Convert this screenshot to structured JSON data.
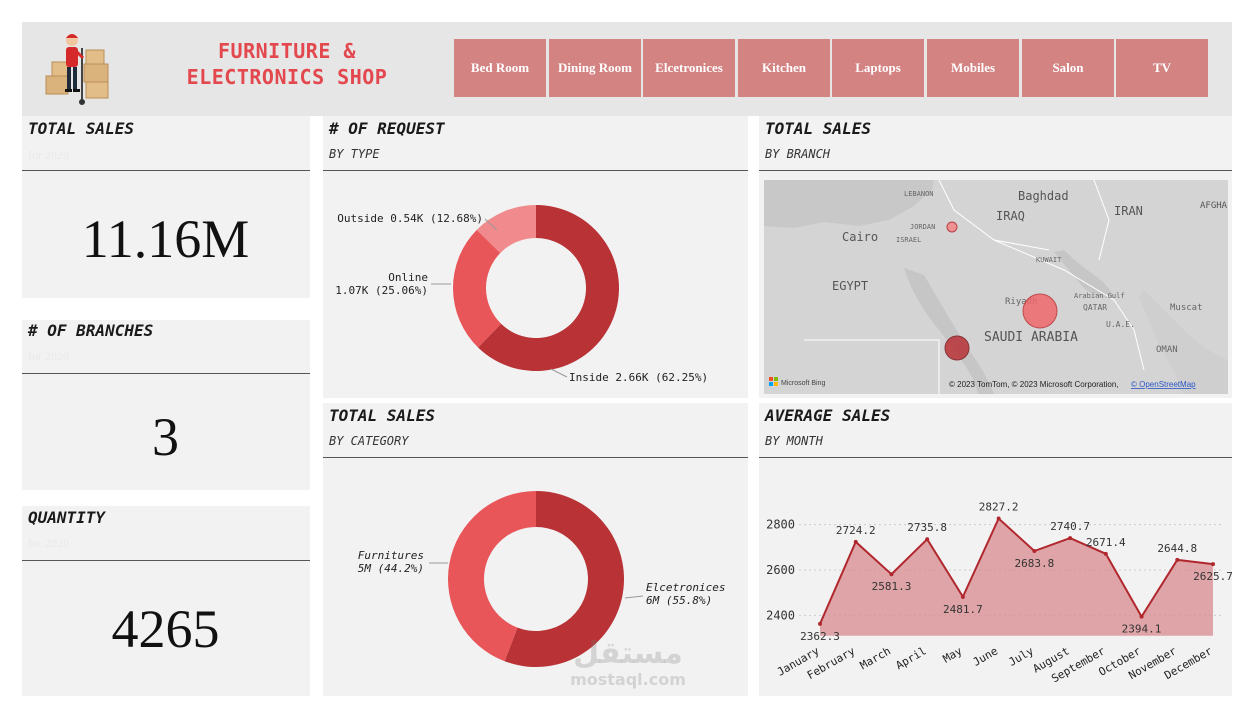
{
  "header": {
    "title_line1": "FURNITURE &",
    "title_line2": "ELECTRONICS SHOP",
    "logo_icon": "delivery-person-boxes-icon",
    "nav": [
      "Bed Room",
      "Dining Room",
      "Elcetronices",
      "Kitchen",
      "Laptops",
      "Mobiles",
      "Salon",
      "TV"
    ]
  },
  "kpis": {
    "sales": {
      "title": "TOTAL SALES",
      "sub": "for 2020",
      "value": "11.16M"
    },
    "branches": {
      "title": "# OF BRANCHES",
      "sub": "for 2020",
      "value": "3"
    },
    "quantity": {
      "title": "QUANTITY",
      "sub": "for 2020",
      "value": "4265"
    }
  },
  "request_panel": {
    "title": "# OF REQUEST",
    "subtitle": "BY TYPE"
  },
  "category_panel": {
    "title": "TOTAL SALES",
    "subtitle": "BY CATEGORY"
  },
  "branch_panel": {
    "title": "TOTAL SALES",
    "subtitle": "BY BRANCH",
    "map_labels": [
      "LEBANON",
      "Baghdad",
      "IRAQ",
      "IRAN",
      "AFGHA",
      "JORDAN",
      "ISRAEL",
      "Cairo",
      "KUWAIT",
      "EGYPT",
      "Riyadh",
      "Arabian Gulf",
      "QATAR",
      "U.A.E.",
      "Muscat",
      "OMAN",
      "SAUDI ARABIA"
    ],
    "attribution": "© 2023 TomTom, © 2023 Microsoft Corporation,",
    "osm_link": "© OpenStreetMap",
    "bing_label": "Microsoft Bing"
  },
  "month_panel": {
    "title": "AVERAGE SALES",
    "subtitle": "BY MONTH"
  },
  "watermark": {
    "arabic": "مستقل",
    "latin": "mostaql.com"
  },
  "colors": {
    "accent": "#e2484e",
    "nav_bg": "#d48383",
    "dark_red": "#b83236",
    "mid_red": "#e8565a",
    "light_red": "#f08a8c",
    "area_fill": "#d88a8e",
    "line": "#b0282e"
  },
  "chart_data": [
    {
      "type": "pie",
      "style": "donut",
      "categories": [
        "Inside",
        "Online",
        "Outside"
      ],
      "values": [
        2.66,
        1.07,
        0.54
      ],
      "unit": "K",
      "labels": [
        "Inside 2.66K (62.25%)",
        "Online 1.07K (25.06%)",
        "Outside 0.54K (12.68%)"
      ]
    },
    {
      "type": "pie",
      "style": "donut",
      "categories": [
        "Elcetronices",
        "Furnitures"
      ],
      "values": [
        55.8,
        44.2
      ],
      "labels_line1": [
        "Elcetronices",
        "Furnitures"
      ],
      "labels_line2": [
        "6M (55.8%)",
        "5M (44.2%)"
      ]
    },
    {
      "type": "area",
      "categories": [
        "January",
        "February",
        "March",
        "April",
        "May",
        "June",
        "July",
        "August",
        "September",
        "October",
        "November",
        "December"
      ],
      "values": [
        2362.3,
        2724.2,
        2581.3,
        2735.8,
        2481.7,
        2827.2,
        2683.8,
        2740.7,
        2671.4,
        2394.1,
        2644.8,
        2625.7
      ],
      "yticks": [
        2400,
        2600,
        2800
      ],
      "ylim": [
        2300,
        2900
      ],
      "grid": true
    }
  ]
}
